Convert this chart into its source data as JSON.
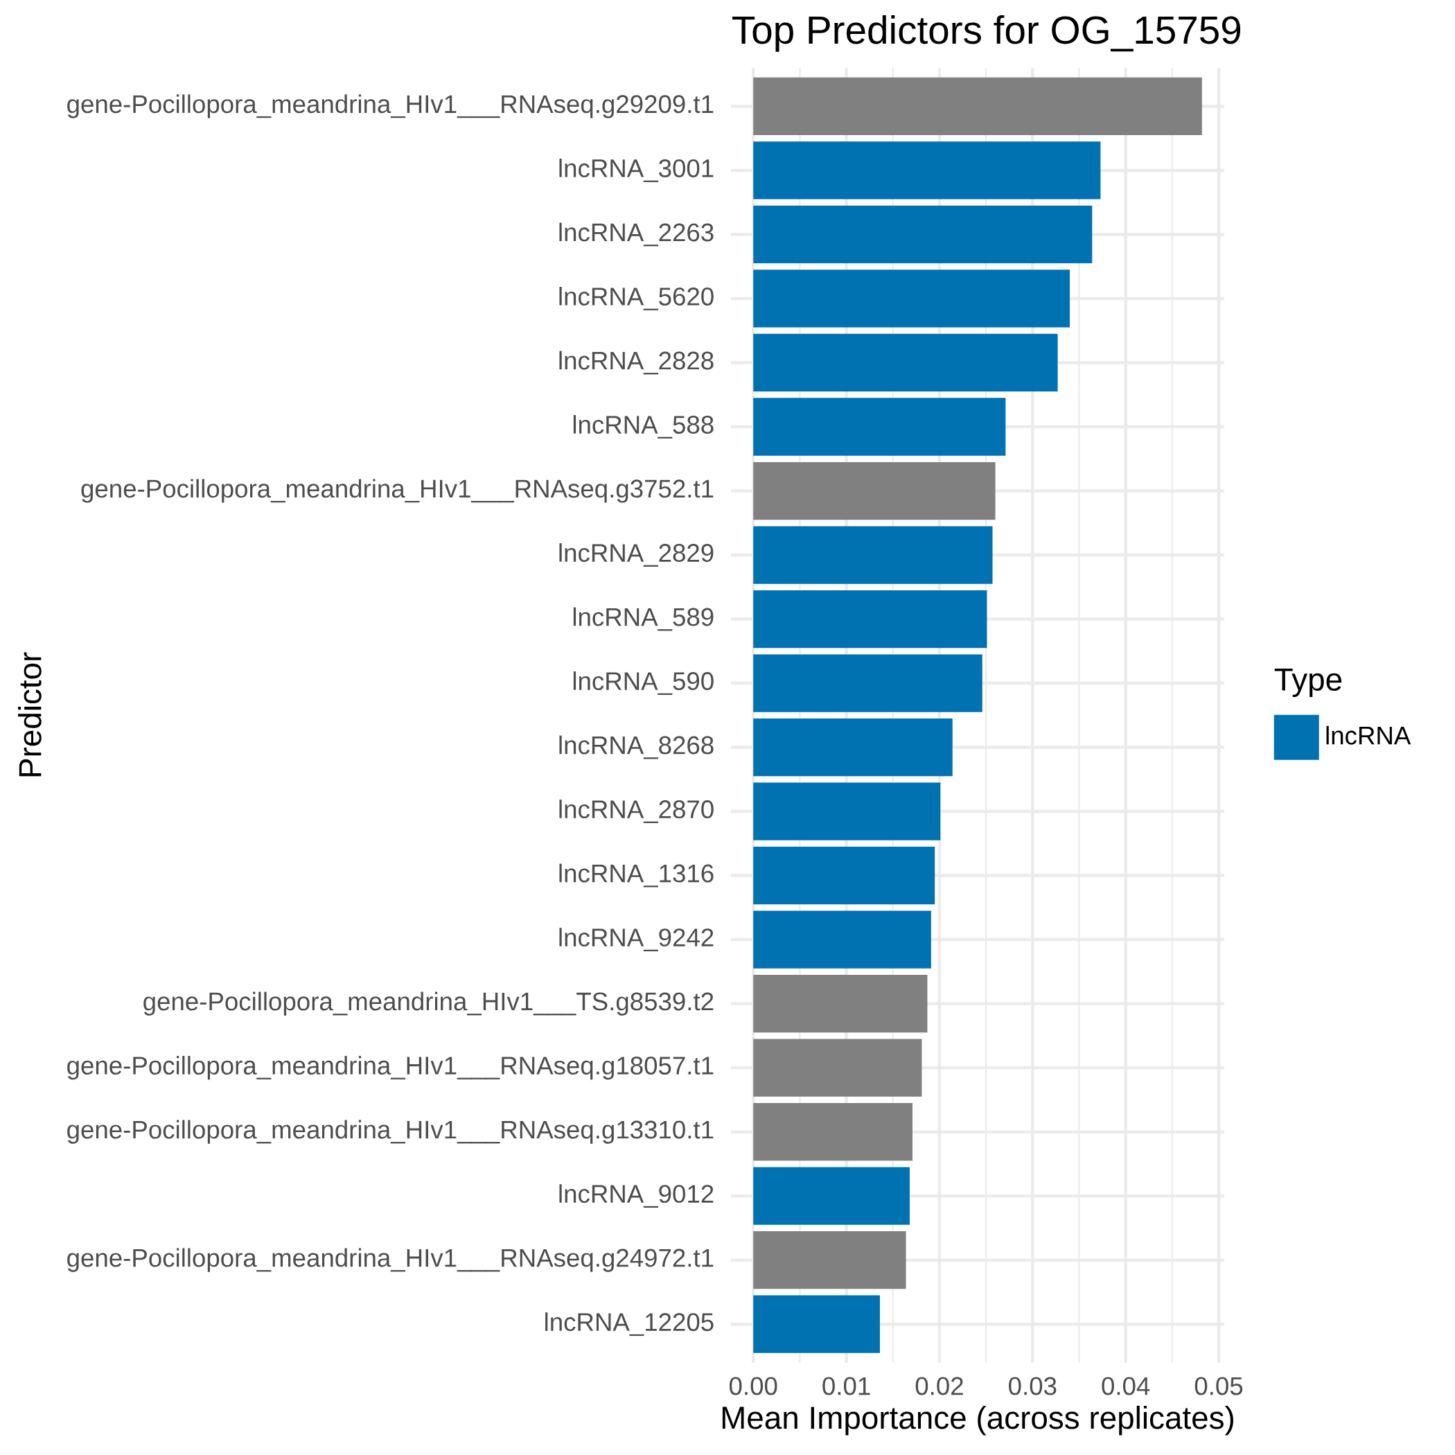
{
  "chart_data": {
    "type": "bar",
    "orientation": "horizontal",
    "title": "Top Predictors for OG_15759",
    "xlabel": "Mean Importance (across replicates)",
    "ylabel": "Predictor",
    "legend_title": "Type",
    "categories": [
      "gene-Pocillopora_meandrina_HIv1___RNAseq.g29209.t1",
      "lncRNA_3001",
      "lncRNA_2263",
      "lncRNA_5620",
      "lncRNA_2828",
      "lncRNA_588",
      "gene-Pocillopora_meandrina_HIv1___RNAseq.g3752.t1",
      "lncRNA_2829",
      "lncRNA_589",
      "lncRNA_590",
      "lncRNA_8268",
      "lncRNA_2870",
      "lncRNA_1316",
      "lncRNA_9242",
      "gene-Pocillopora_meandrina_HIv1___TS.g8539.t2",
      "gene-Pocillopora_meandrina_HIv1___RNAseq.g18057.t1",
      "gene-Pocillopora_meandrina_HIv1___RNAseq.g13310.t1",
      "lncRNA_9012",
      "gene-Pocillopora_meandrina_HIv1___RNAseq.g24972.t1",
      "lncRNA_12205"
    ],
    "series": [
      {
        "name": "lncRNA",
        "color": "#0072b2",
        "values": [
          null,
          0.0373,
          0.0364,
          0.034,
          0.0327,
          0.0271,
          null,
          0.0257,
          0.0251,
          0.0246,
          0.0214,
          0.0201,
          0.0195,
          0.0191,
          null,
          null,
          null,
          0.0168,
          null,
          0.0136
        ]
      },
      {
        "color": "#808080",
        "values": [
          0.0482,
          null,
          null,
          null,
          null,
          null,
          0.026,
          null,
          null,
          null,
          null,
          null,
          null,
          null,
          0.0187,
          0.0181,
          0.0171,
          null,
          0.0164,
          null
        ]
      }
    ],
    "xlim": [
      -0.0024,
      0.0506
    ],
    "xticks": [
      {
        "value": 0,
        "label": "0.00"
      },
      0.01,
      0.02,
      0.03,
      0.04,
      0.05
    ],
    "grid": true,
    "legend": "right"
  }
}
